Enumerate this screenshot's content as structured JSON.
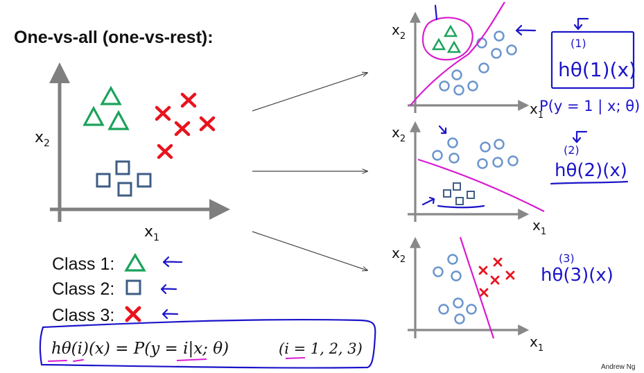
{
  "title": "One-vs-all (one-vs-rest):",
  "classes": [
    {
      "label": "Class 1:",
      "symbol": "triangle-icon",
      "color": "#1aa35a"
    },
    {
      "label": "Class 2:",
      "symbol": "square-icon",
      "color": "#3e5c84"
    },
    {
      "label": "Class 3:",
      "symbol": "cross-icon",
      "color": "#e8141e"
    }
  ],
  "axis_labels": {
    "x": "x1",
    "y": "x2"
  },
  "formula": {
    "lhs": "hθ(i)(x) = P(y = i|x; θ)",
    "rhs": "(i = 1, 2, 3)"
  },
  "annotations": {
    "h1": "hθ(1)(x)",
    "p1": "P(y = 1 | x; θ)",
    "h2": "hθ(2)(x)",
    "h3": "hθ(3)(x)"
  },
  "credit": "Andrew Ng",
  "colors": {
    "triangle": "#1aa35a",
    "square": "#3e5c84",
    "cross": "#e8141e",
    "circle": "#6b95cd",
    "boundary": "#d91bd0",
    "ink": "#1b14c8"
  }
}
